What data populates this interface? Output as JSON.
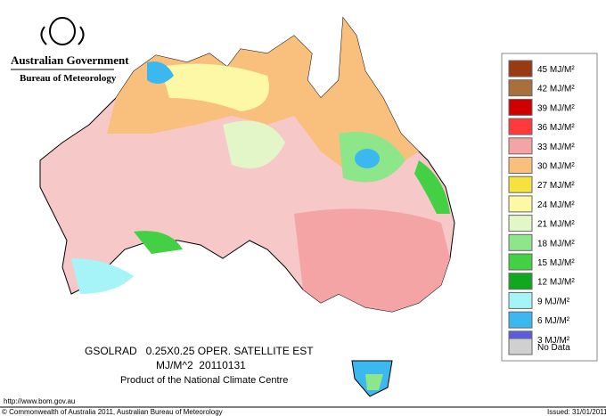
{
  "header": {
    "government": "Australian Government",
    "bureau": "Bureau of Meteorology"
  },
  "legend": {
    "items": [
      {
        "label": "45 MJ/M²",
        "color": "#9a3a12"
      },
      {
        "label": "42 MJ/M²",
        "color": "#a8703c"
      },
      {
        "label": "39 MJ/M²",
        "color": "#d00000"
      },
      {
        "label": "36 MJ/M²",
        "color": "#ff3a3a"
      },
      {
        "label": "33 MJ/M²",
        "color": "#f4a4a4"
      },
      {
        "label": "30 MJ/M²",
        "color": "#f8c07c"
      },
      {
        "label": "27 MJ/M²",
        "color": "#f6e23e"
      },
      {
        "label": "24 MJ/M²",
        "color": "#fcf8a6"
      },
      {
        "label": "21 MJ/M²",
        "color": "#e2f6c8"
      },
      {
        "label": "18 MJ/M²",
        "color": "#8ee68a"
      },
      {
        "label": "15 MJ/M²",
        "color": "#44d044"
      },
      {
        "label": "12 MJ/M²",
        "color": "#10a820"
      },
      {
        "label": "9 MJ/M²",
        "color": "#a6f4f8"
      },
      {
        "label": "6 MJ/M²",
        "color": "#3cb8f0"
      },
      {
        "label": "3 MJ/M²",
        "color": "#5c5ce0"
      },
      {
        "label": "No Data",
        "color": "#d0d0d0"
      }
    ]
  },
  "caption": {
    "line1": "GSOLRAD   0.25X0.25 OPER. SATELLITE EST",
    "line2": "MJ/M^2  20110131",
    "line3": "Product of the National Climate Centre"
  },
  "footer": {
    "url": "http://www.bom.gov.au",
    "copyright": "© Commonwealth of Australia 2011, Australian Bureau of Meteorology",
    "issued": "Issued: 31/01/2011"
  }
}
